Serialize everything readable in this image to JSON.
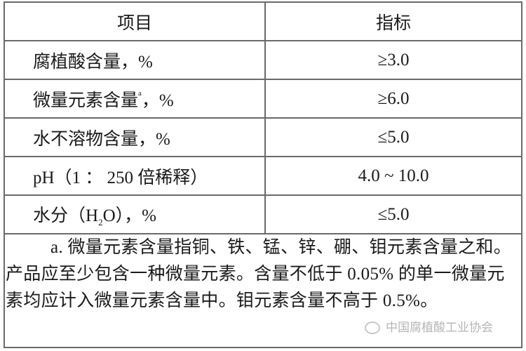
{
  "table": {
    "headers": [
      "项目",
      "指标"
    ],
    "rows": [
      {
        "item": "腐植酸含量，%",
        "value": "≥3.0"
      },
      {
        "item_main": "微量元素含量",
        "item_sup": "a",
        "item_tail": "，%",
        "value": "≥6.0"
      },
      {
        "item": "水不溶物含量，%",
        "value": "≤5.0"
      },
      {
        "item": "pH（1 ： 250 倍稀释）",
        "value": "4.0 ~ 10.0"
      },
      {
        "item_pre": "水分（H",
        "item_sub": "2",
        "item_post": "O），%",
        "value": "≤5.0"
      }
    ]
  },
  "footnote": "a. 微量元素含量指铜、铁、锰、锌、硼、钼元素含量之和。产品应至少包含一种微量元素。含量不低于 0.05% 的单一微量元素均应计入微量元素含量中。钼元素含量不高于 0.5%。",
  "watermark": {
    "text": "中国腐植酸工业协会",
    "icon": "wechat-icon"
  }
}
